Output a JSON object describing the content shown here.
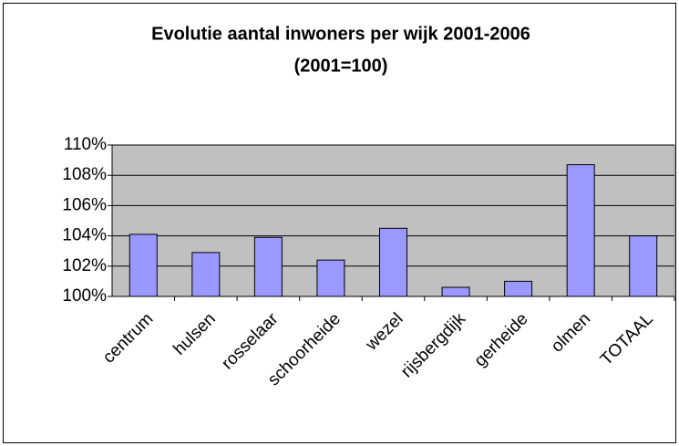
{
  "chart_data": {
    "type": "bar",
    "title": "Evolutie aantal inwoners per wijk 2001-2006",
    "subtitle": "(2001=100)",
    "categories": [
      "centrum",
      "hulsen",
      "rosselaar",
      "schoorheide",
      "wezel",
      "rijsbergdijk",
      "gerheide",
      "olmen",
      "TOTAAL"
    ],
    "values": [
      104.1,
      102.9,
      103.9,
      102.4,
      104.5,
      100.6,
      101.0,
      108.7,
      104.0
    ],
    "color": "#9999ff",
    "ylim": [
      100,
      110
    ],
    "yticks": [
      {
        "value": 100,
        "label": "100%"
      },
      {
        "value": 102,
        "label": "102%"
      },
      {
        "value": 104,
        "label": "104%"
      },
      {
        "value": 106,
        "label": "106%"
      },
      {
        "value": 108,
        "label": "108%"
      },
      {
        "value": 110,
        "label": "110%"
      }
    ],
    "grid": true
  }
}
